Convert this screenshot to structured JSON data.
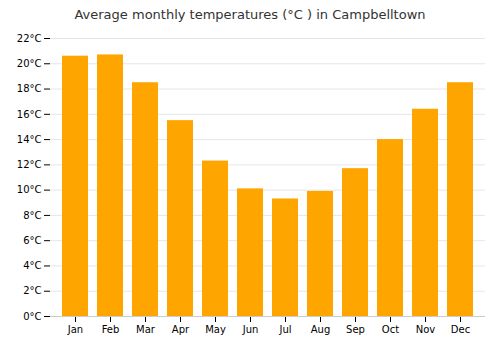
{
  "chart_data": {
    "type": "bar",
    "title": "Average monthly temperatures (°C ) in Campbelltown",
    "categories": [
      "Jan",
      "Feb",
      "Mar",
      "Apr",
      "May",
      "Jun",
      "Jul",
      "Aug",
      "Sep",
      "Oct",
      "Nov",
      "Dec"
    ],
    "values": [
      20.6,
      20.7,
      18.5,
      15.5,
      12.3,
      10.1,
      9.3,
      9.9,
      11.7,
      14.0,
      16.4,
      18.5
    ],
    "color": "#FFA500",
    "ylim": [
      0,
      22
    ],
    "yticks": [
      {
        "value": 0,
        "label": "0°C"
      },
      {
        "value": 2,
        "label": "2°C"
      },
      {
        "value": 4,
        "label": "4°C"
      },
      {
        "value": 6,
        "label": "6°C"
      },
      {
        "value": 8,
        "label": "8°C"
      },
      {
        "value": 10,
        "label": "10°C"
      },
      {
        "value": 12,
        "label": "12°C"
      },
      {
        "value": 14,
        "label": "14°C"
      },
      {
        "value": 16,
        "label": "16°C"
      },
      {
        "value": 18,
        "label": "18°C"
      },
      {
        "value": 20,
        "label": "20°C"
      },
      {
        "value": 22,
        "label": "22°C"
      }
    ],
    "grid": true
  }
}
